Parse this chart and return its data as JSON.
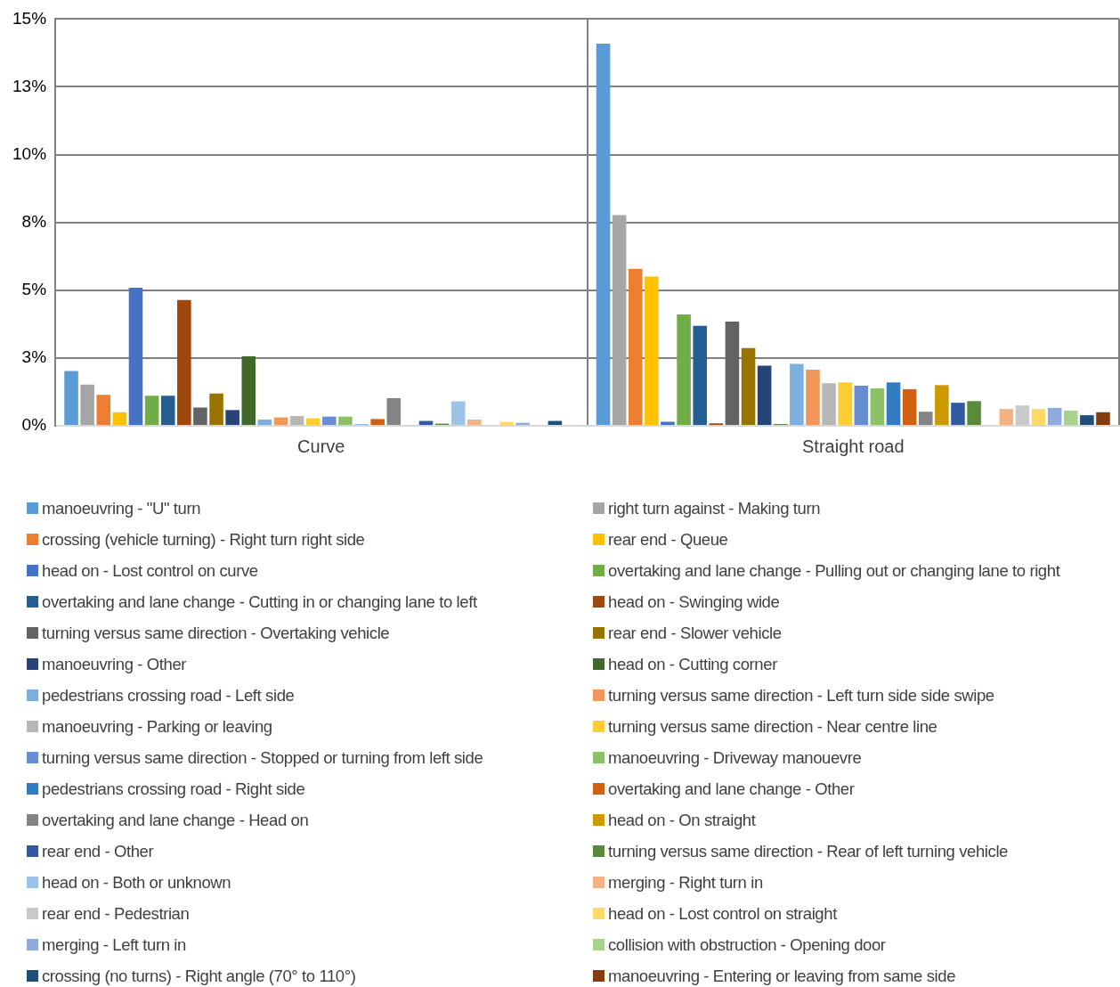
{
  "chart_data": {
    "type": "bar",
    "categories": [
      "Curve",
      "Straight road"
    ],
    "ylim": [
      0,
      15
    ],
    "yticks": [
      {
        "value": 0,
        "label": "0%"
      },
      {
        "value": 2.5,
        "label": "3%"
      },
      {
        "value": 5,
        "label": "5%"
      },
      {
        "value": 7.5,
        "label": "8%"
      },
      {
        "value": 10,
        "label": "10%"
      },
      {
        "value": 12.5,
        "label": "13%"
      },
      {
        "value": 15,
        "label": "15%"
      }
    ],
    "grid": true,
    "legend": "bottom",
    "series": [
      {
        "name": "manoeuvring - \"U\" turn",
        "color": "#5b9bd5",
        "values": [
          2.02,
          14.09
        ]
      },
      {
        "name": "right turn against - Making turn",
        "color": "#a5a5a5",
        "values": [
          1.52,
          7.77
        ]
      },
      {
        "name": "crossing (vehicle turning) - Right turn right side",
        "color": "#ed7d31",
        "values": [
          1.14,
          5.79
        ]
      },
      {
        "name": "rear end - Queue",
        "color": "#ffc000",
        "values": [
          0.5,
          5.5
        ]
      },
      {
        "name": "head on - Lost control on curve",
        "color": "#4472c4",
        "values": [
          5.09,
          0.15
        ]
      },
      {
        "name": "overtaking and lane change - Pulling out or changing lane to right",
        "color": "#70ad47",
        "values": [
          1.11,
          4.11
        ]
      },
      {
        "name": "overtaking and lane change - Cutting in or changing lane to left",
        "color": "#255e91",
        "values": [
          1.11,
          3.69
        ]
      },
      {
        "name": "head on - Swinging wide",
        "color": "#9e480e",
        "values": [
          4.64,
          0.09
        ]
      },
      {
        "name": "turning versus same direction - Overtaking vehicle",
        "color": "#636363",
        "values": [
          0.67,
          3.84
        ]
      },
      {
        "name": "rear end - Slower vehicle",
        "color": "#997300",
        "values": [
          1.19,
          2.87
        ]
      },
      {
        "name": "manoeuvring - Other",
        "color": "#264478",
        "values": [
          0.58,
          2.22
        ]
      },
      {
        "name": "head on - Cutting corner",
        "color": "#43682b",
        "values": [
          2.56,
          0.06
        ]
      },
      {
        "name": "pedestrians crossing road - Left side",
        "color": "#7cafdd",
        "values": [
          0.23,
          2.28
        ]
      },
      {
        "name": "turning versus same direction - Left turn side side swipe",
        "color": "#f1975a",
        "values": [
          0.31,
          2.07
        ]
      },
      {
        "name": "manoeuvring - Parking or leaving",
        "color": "#b7b7b7",
        "values": [
          0.36,
          1.57
        ]
      },
      {
        "name": "turning versus same direction - Near centre line",
        "color": "#ffcd33",
        "values": [
          0.28,
          1.6
        ]
      },
      {
        "name": "turning versus same direction - Stopped or turning from left side",
        "color": "#698ed0",
        "values": [
          0.34,
          1.48
        ]
      },
      {
        "name": "manoeuvring - Driveway manouevre",
        "color": "#8cc168",
        "values": [
          0.34,
          1.38
        ]
      },
      {
        "name": "pedestrians crossing road - Right side",
        "color": "#327dc2",
        "values": [
          0.05,
          1.6
        ]
      },
      {
        "name": "overtaking and lane change - Other",
        "color": "#d26012",
        "values": [
          0.25,
          1.35
        ]
      },
      {
        "name": "overtaking and lane change - Head on",
        "color": "#848484",
        "values": [
          1.02,
          0.52
        ]
      },
      {
        "name": "head on - On straight",
        "color": "#cc9a00",
        "values": [
          null,
          1.5
        ]
      },
      {
        "name": "rear end - Other",
        "color": "#335aa1",
        "values": [
          0.18,
          0.85
        ]
      },
      {
        "name": "turning versus same direction - Rear of left turning vehicle",
        "color": "#5a8a39",
        "values": [
          0.08,
          0.91
        ]
      },
      {
        "name": "head on - Both or unknown",
        "color": "#9dc3e6",
        "values": [
          0.9,
          null
        ]
      },
      {
        "name": "merging - Right turn in",
        "color": "#f4b183",
        "values": [
          0.23,
          0.62
        ]
      },
      {
        "name": "rear end - Pedestrian",
        "color": "#c9c9c9",
        "values": [
          null,
          0.75
        ]
      },
      {
        "name": "head on - Lost control on straight",
        "color": "#ffd966",
        "values": [
          0.14,
          0.62
        ]
      },
      {
        "name": "merging - Left turn in",
        "color": "#8faadc",
        "values": [
          0.11,
          0.66
        ]
      },
      {
        "name": "collision with obstruction - Opening door",
        "color": "#a9d18e",
        "values": [
          null,
          0.56
        ]
      },
      {
        "name": "crossing (no turns) - Right angle (70° to 110°)",
        "color": "#1f4e79",
        "values": [
          0.18,
          0.39
        ]
      },
      {
        "name": "manoeuvring - Entering or leaving from same side",
        "color": "#843c0c",
        "values": [
          null,
          0.5
        ]
      }
    ]
  }
}
